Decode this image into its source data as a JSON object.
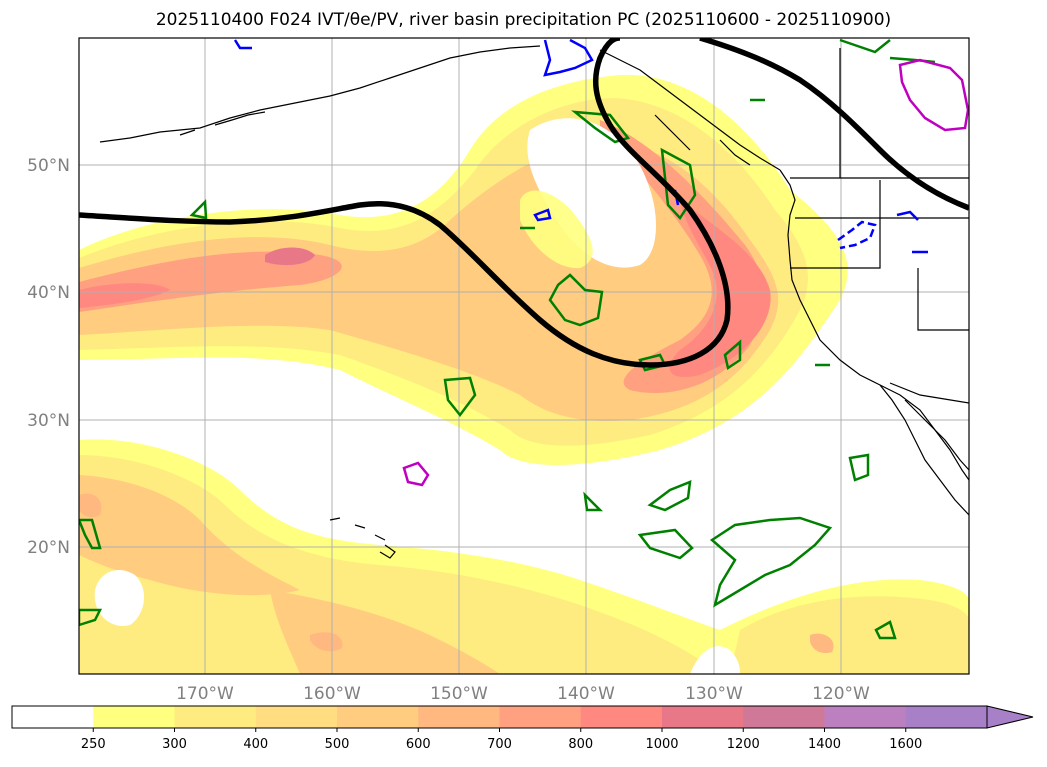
{
  "title": "2025110400 F024 IVT/θe/PV, river basin precipitation PC (2025110600 - 2025110900)",
  "map": {
    "lat_labels": [
      "50°N",
      "40°N",
      "30°N",
      "20°N"
    ],
    "lon_labels": [
      "170°W",
      "160°W",
      "150°W",
      "140°W",
      "130°W",
      "120°W"
    ],
    "colors": {
      "jet_line": "#000000",
      "pv_green": "#008000",
      "pv_blue": "#0000ff",
      "pv_magenta": "#c000c0",
      "grid": "#b0b0b0",
      "coast": "#000000"
    }
  },
  "colorbar": {
    "levels": [
      "250",
      "300",
      "400",
      "500",
      "600",
      "700",
      "800",
      "1000",
      "1200",
      "1400",
      "1600"
    ],
    "colors": [
      "#ffffff",
      "#ffff80",
      "#ffec80",
      "#ffdd80",
      "#ffcc80",
      "#ffb880",
      "#ffa080",
      "#ff8880",
      "#e87888",
      "#d07898",
      "#bc80c0",
      "#a880c8"
    ]
  }
}
